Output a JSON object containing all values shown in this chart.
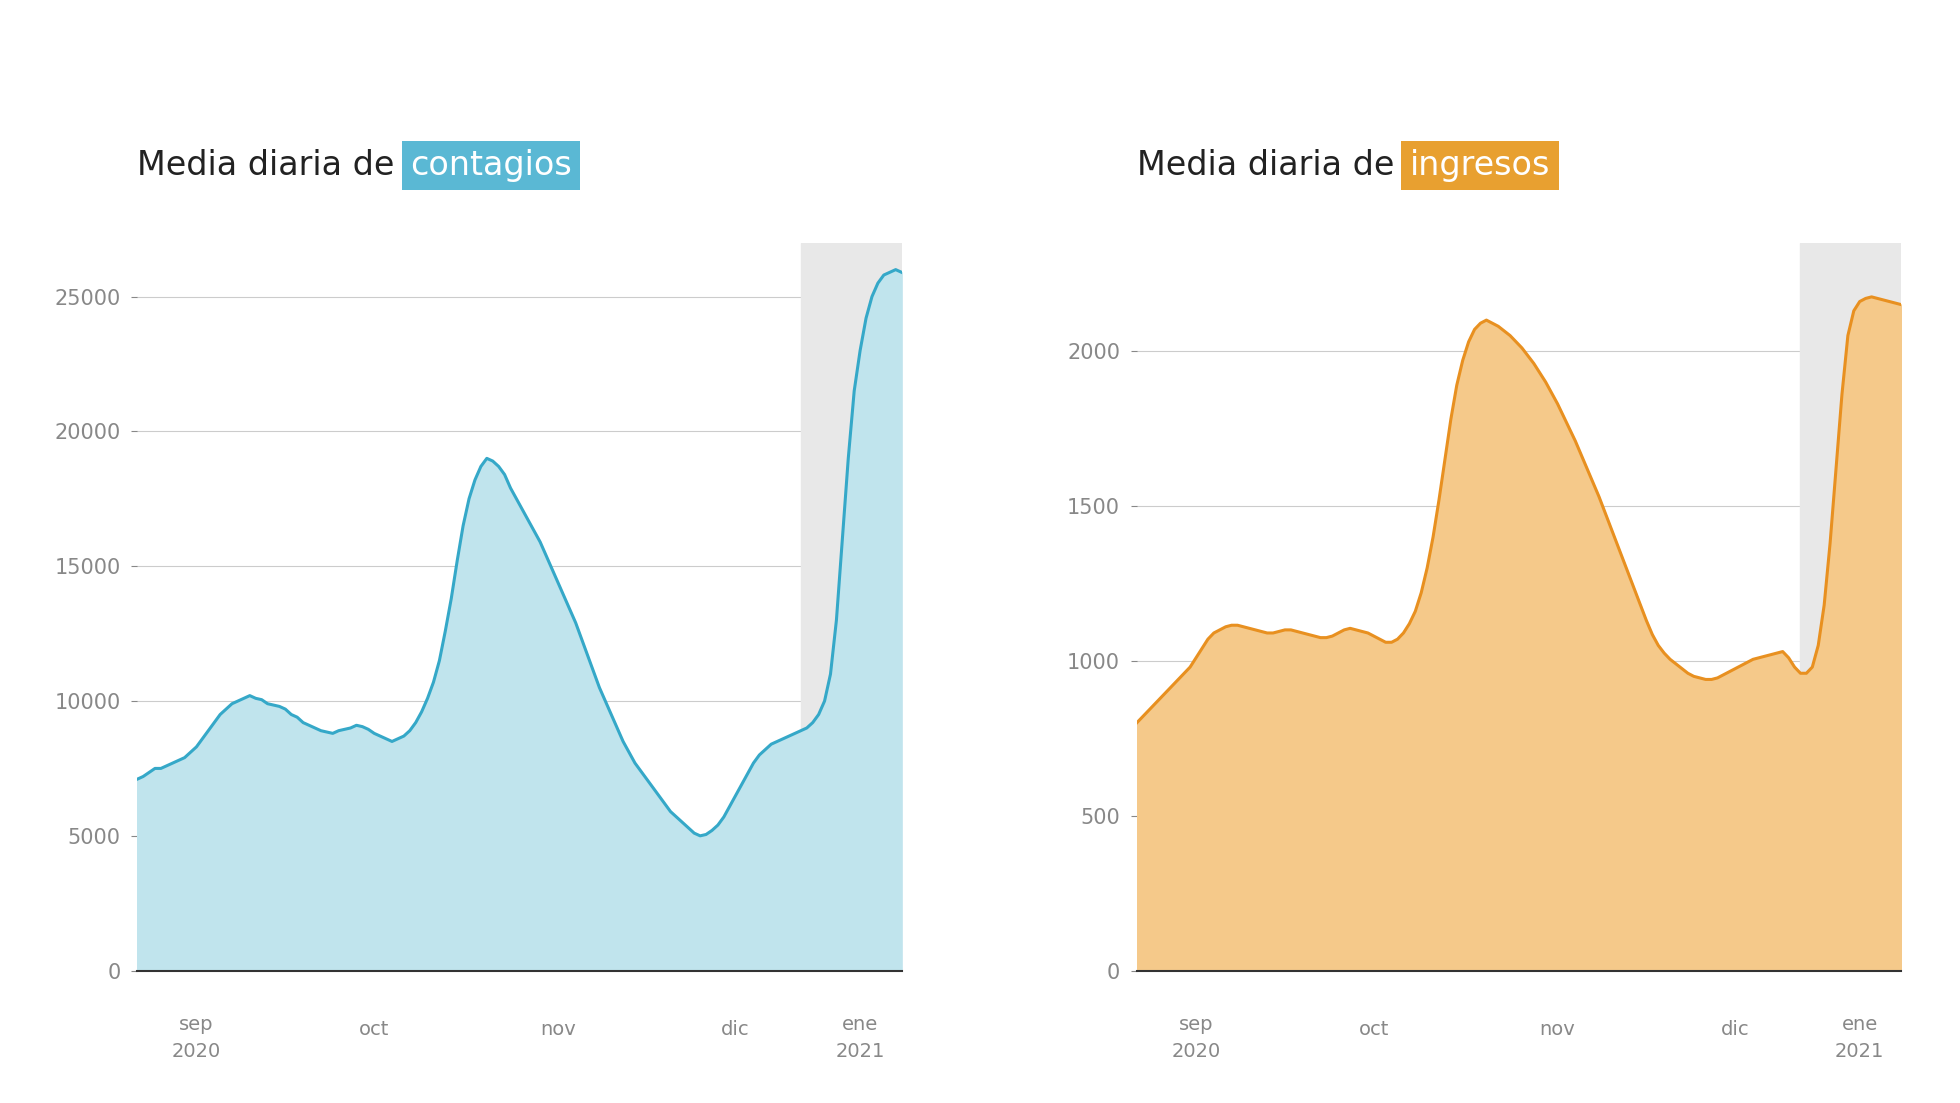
{
  "title_left_prefix": "Media diaria de ",
  "title_left_highlight": "contagios",
  "title_right_prefix": "Media diaria de ",
  "title_right_highlight": "ingresos",
  "highlight_color_left": "#5ab8d4",
  "highlight_color_right": "#e8a030",
  "fill_color_left": "#c0e4ed",
  "fill_color_right": "#f5c98a",
  "line_color_left": "#35a8c8",
  "line_color_right": "#e89020",
  "shade_color": "#e8e8e8",
  "background_color": "#ffffff",
  "ylim_left": [
    0,
    27000
  ],
  "ylim_right": [
    0,
    2350
  ],
  "yticks_left": [
    0,
    5000,
    10000,
    15000,
    20000,
    25000
  ],
  "yticks_right": [
    0,
    500,
    1000,
    1500,
    2000
  ],
  "shade_start_idx": 112,
  "contagios_data": [
    7100,
    7200,
    7350,
    7500,
    7500,
    7600,
    7700,
    7800,
    7900,
    8100,
    8300,
    8600,
    8900,
    9200,
    9500,
    9700,
    9900,
    10000,
    10100,
    10200,
    10100,
    10050,
    9900,
    9850,
    9800,
    9700,
    9500,
    9400,
    9200,
    9100,
    9000,
    8900,
    8850,
    8800,
    8900,
    8950,
    9000,
    9100,
    9050,
    8950,
    8800,
    8700,
    8600,
    8500,
    8600,
    8700,
    8900,
    9200,
    9600,
    10100,
    10700,
    11500,
    12600,
    13800,
    15200,
    16500,
    17500,
    18200,
    18700,
    19000,
    18900,
    18700,
    18400,
    17900,
    17500,
    17100,
    16700,
    16300,
    15900,
    15400,
    14900,
    14400,
    13900,
    13400,
    12900,
    12300,
    11700,
    11100,
    10500,
    10000,
    9500,
    9000,
    8500,
    8100,
    7700,
    7400,
    7100,
    6800,
    6500,
    6200,
    5900,
    5700,
    5500,
    5300,
    5100,
    5000,
    5050,
    5200,
    5400,
    5700,
    6100,
    6500,
    6900,
    7300,
    7700,
    8000,
    8200,
    8400,
    8500,
    8600,
    8700,
    8800,
    8900,
    9000,
    9200,
    9500,
    10000,
    11000,
    13000,
    16000,
    19000,
    21500,
    23000,
    24200,
    25000,
    25500,
    25800,
    25900,
    26000,
    25900
  ],
  "ingresos_data": [
    800,
    820,
    840,
    860,
    880,
    900,
    920,
    940,
    960,
    980,
    1010,
    1040,
    1070,
    1090,
    1100,
    1110,
    1115,
    1115,
    1110,
    1105,
    1100,
    1095,
    1090,
    1090,
    1095,
    1100,
    1100,
    1095,
    1090,
    1085,
    1080,
    1075,
    1075,
    1080,
    1090,
    1100,
    1105,
    1100,
    1095,
    1090,
    1080,
    1070,
    1060,
    1060,
    1070,
    1090,
    1120,
    1160,
    1220,
    1300,
    1400,
    1520,
    1650,
    1780,
    1890,
    1970,
    2030,
    2070,
    2090,
    2100,
    2090,
    2080,
    2065,
    2050,
    2030,
    2010,
    1985,
    1960,
    1930,
    1900,
    1865,
    1830,
    1790,
    1750,
    1710,
    1665,
    1620,
    1575,
    1530,
    1480,
    1430,
    1380,
    1330,
    1280,
    1230,
    1180,
    1130,
    1085,
    1050,
    1025,
    1005,
    990,
    975,
    960,
    950,
    945,
    940,
    940,
    945,
    955,
    965,
    975,
    985,
    995,
    1005,
    1010,
    1015,
    1020,
    1025,
    1030,
    1010,
    980,
    960,
    960,
    980,
    1050,
    1180,
    1380,
    1620,
    1860,
    2050,
    2130,
    2160,
    2170,
    2175,
    2170,
    2165,
    2160,
    2155,
    2150
  ],
  "x_tick_positions": [
    10,
    40,
    71,
    101,
    122
  ],
  "x_tick_labels_top": [
    "sep",
    "oct",
    "nov",
    "dic",
    "ene"
  ],
  "x_tick_labels_bottom": [
    "2020",
    "",
    "",
    "",
    "2021"
  ],
  "total_points": 130
}
